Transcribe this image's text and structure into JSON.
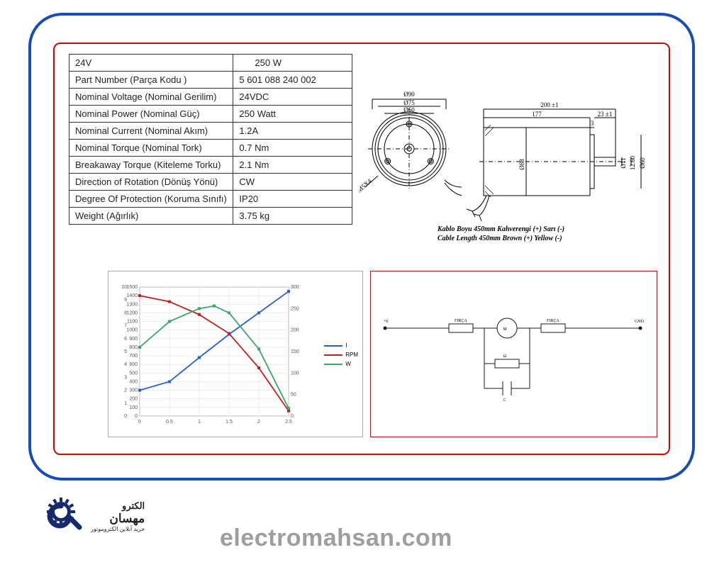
{
  "frame": {
    "outer_border_color": "#1a4db3",
    "inner_border_color": "#d40000"
  },
  "spec_table": {
    "header": {
      "left": "24V",
      "right": "250 W"
    },
    "rows": [
      {
        "label": "Part Number (Parça Kodu )",
        "value": "5 601 088 240 002"
      },
      {
        "label": "Nominal Voltage (Nominal Gerilim)",
        "value": "24VDC"
      },
      {
        "label": "Nominal Power (Nominal Güç)",
        "value": "250 Watt"
      },
      {
        "label": "Nominal Current (Nominal Akım)",
        "value": "1.2A"
      },
      {
        "label": "Nominal Torque (Nominal Tork)",
        "value": "0.7 Nm"
      },
      {
        "label": "Breakaway Torque (Kiteleme Torku)",
        "value": "2.1 Nm"
      },
      {
        "label": "Direction of Rotation (Dönüş Yönü)",
        "value": "CW"
      },
      {
        "label": "Degree Of Protection (Koruma Sınıfı)",
        "value": "IP20"
      },
      {
        "label": "Weight (Ağırlık)",
        "value": "3.75 kg"
      }
    ]
  },
  "front_view": {
    "dimensions": {
      "d90": "Ø90",
      "d75": "Ø75",
      "d60": "Ø60",
      "thread": "M5X4"
    }
  },
  "side_view": {
    "dimensions": {
      "total": "200 ±1",
      "body": "177",
      "shoulder": "23 ±1",
      "gap": "3",
      "body_dia": "Ø88",
      "shaft": "Ø11",
      "flat": "12.60",
      "flange": "Ø60"
    }
  },
  "cable_note": {
    "line1": "Kablo Boyu 450mm Kahverengi (+) Sarı (-)",
    "line2": "Cable Length 450mm Brown (+) Yellow (-)"
  },
  "chart": {
    "type": "line",
    "background": "#ffffff",
    "grid_color": "#dcdcdc",
    "axis_color": "#333333",
    "x_axis": {
      "min": 0,
      "max": 2.5,
      "ticks": [
        0,
        0.5,
        1,
        1.5,
        2,
        2.5
      ]
    },
    "y_left": {
      "min": 0,
      "max": 1500,
      "ticks": [
        0,
        100,
        200,
        300,
        400,
        500,
        600,
        700,
        800,
        900,
        1000,
        1100,
        1200,
        1300,
        1400,
        1500
      ],
      "secondary_max": 10
    },
    "y_right": {
      "min": 0,
      "max": 300,
      "ticks": [
        0,
        50,
        100,
        150,
        200,
        250,
        300
      ]
    },
    "series": [
      {
        "name": "I",
        "color": "#2a5fd1",
        "points": [
          [
            0,
            300
          ],
          [
            0.5,
            400
          ],
          [
            1.0,
            680
          ],
          [
            1.5,
            950
          ],
          [
            2.0,
            1200
          ],
          [
            2.5,
            1450
          ]
        ]
      },
      {
        "name": "RPM",
        "color": "#c02020",
        "points": [
          [
            0,
            1400
          ],
          [
            0.5,
            1330
          ],
          [
            1.0,
            1180
          ],
          [
            1.5,
            960
          ],
          [
            2.0,
            560
          ],
          [
            2.5,
            60
          ]
        ]
      },
      {
        "name": "W",
        "color": "#3aa66c",
        "points": [
          [
            0,
            800
          ],
          [
            0.5,
            1100
          ],
          [
            1.0,
            1250
          ],
          [
            1.25,
            1280
          ],
          [
            1.5,
            1200
          ],
          [
            2.0,
            780
          ],
          [
            2.5,
            90
          ]
        ]
      }
    ],
    "legend": [
      {
        "label": "I",
        "color": "#2a5fd1"
      },
      {
        "label": "RPM",
        "color": "#c02020"
      },
      {
        "label": "W",
        "color": "#3aa66c"
      }
    ]
  },
  "circuit": {
    "labels": {
      "input": "+0",
      "brush1": "FIRÇA",
      "motor": "M",
      "brush2": "FIRÇA",
      "ground": "GND",
      "res": "Ω",
      "cap": "C"
    },
    "stroke": "#1a1a1a"
  },
  "logo": {
    "gear_color": "#152a6b",
    "swirl_color": "#152a6b",
    "text_top": "الکترو",
    "text_mid": "مهسان",
    "text_sub": "خرید آنلاین الکتروموتور"
  },
  "watermark": "electromahsan.com"
}
